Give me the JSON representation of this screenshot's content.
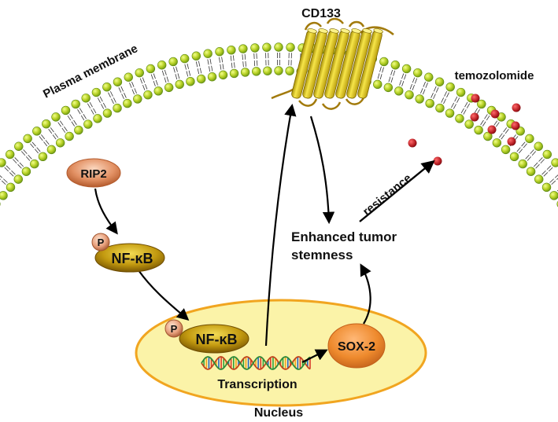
{
  "labels": {
    "cd133": "CD133",
    "plasma_membrane": "Plasma membrane",
    "temozolomide": "temozolomide",
    "rip2": "RIP2",
    "phospho": "P",
    "nfkb": "NF-κB",
    "enhanced_line1": "Enhanced tumor",
    "enhanced_line2": "stemness",
    "resistance": "resistance",
    "sox2": "SOX-2",
    "transcription": "Transcription",
    "nucleus": "Nucleus"
  },
  "colors": {
    "membrane_bead": "#b7d126",
    "bead_outline": "#5f8a12",
    "cd133_helix": "#e7cf1c",
    "drug_dot": "#b51c22",
    "nucleus_fill": "#fbf3a8",
    "nucleus_outline": "#f1a520",
    "sox2_fill": "#ee8a2d",
    "nfkb_fill": "#b8920c",
    "rip2_fill": "#e29063"
  }
}
